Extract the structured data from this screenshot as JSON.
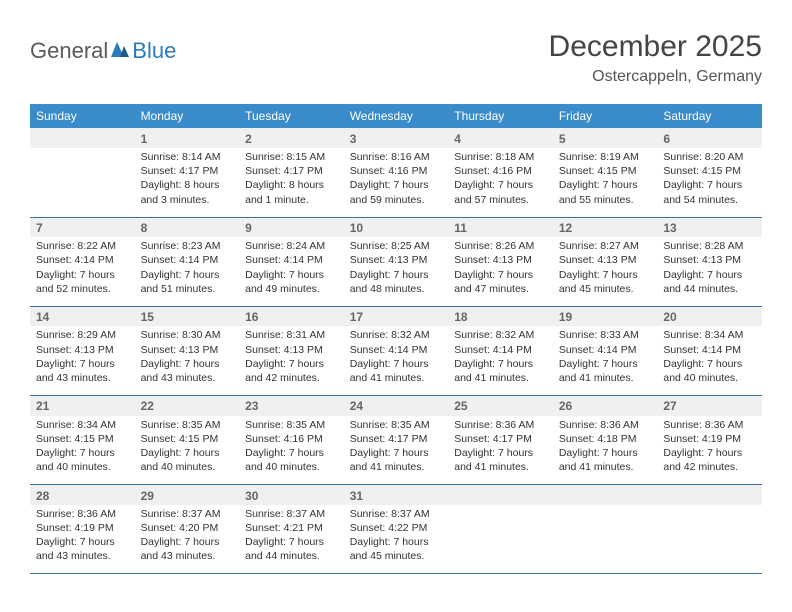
{
  "logo": {
    "general": "General",
    "blue": "Blue"
  },
  "title": "December 2025",
  "location": "Ostercappeln, Germany",
  "colors": {
    "header_bg": "#3a8bc9",
    "header_text": "#ffffff",
    "daynum_bg": "#eef0f2",
    "daynum_text": "#666666",
    "cell_text": "#333333",
    "rule": "#3a72a0",
    "logo_general": "#5a5a5a",
    "logo_blue": "#2a7bbf"
  },
  "dow": [
    "Sunday",
    "Monday",
    "Tuesday",
    "Wednesday",
    "Thursday",
    "Friday",
    "Saturday"
  ],
  "weeks": [
    [
      null,
      {
        "n": "1",
        "sr": "8:14 AM",
        "ss": "4:17 PM",
        "dl": "8 hours and 3 minutes."
      },
      {
        "n": "2",
        "sr": "8:15 AM",
        "ss": "4:17 PM",
        "dl": "8 hours and 1 minute."
      },
      {
        "n": "3",
        "sr": "8:16 AM",
        "ss": "4:16 PM",
        "dl": "7 hours and 59 minutes."
      },
      {
        "n": "4",
        "sr": "8:18 AM",
        "ss": "4:16 PM",
        "dl": "7 hours and 57 minutes."
      },
      {
        "n": "5",
        "sr": "8:19 AM",
        "ss": "4:15 PM",
        "dl": "7 hours and 55 minutes."
      },
      {
        "n": "6",
        "sr": "8:20 AM",
        "ss": "4:15 PM",
        "dl": "7 hours and 54 minutes."
      }
    ],
    [
      {
        "n": "7",
        "sr": "8:22 AM",
        "ss": "4:14 PM",
        "dl": "7 hours and 52 minutes."
      },
      {
        "n": "8",
        "sr": "8:23 AM",
        "ss": "4:14 PM",
        "dl": "7 hours and 51 minutes."
      },
      {
        "n": "9",
        "sr": "8:24 AM",
        "ss": "4:14 PM",
        "dl": "7 hours and 49 minutes."
      },
      {
        "n": "10",
        "sr": "8:25 AM",
        "ss": "4:13 PM",
        "dl": "7 hours and 48 minutes."
      },
      {
        "n": "11",
        "sr": "8:26 AM",
        "ss": "4:13 PM",
        "dl": "7 hours and 47 minutes."
      },
      {
        "n": "12",
        "sr": "8:27 AM",
        "ss": "4:13 PM",
        "dl": "7 hours and 45 minutes."
      },
      {
        "n": "13",
        "sr": "8:28 AM",
        "ss": "4:13 PM",
        "dl": "7 hours and 44 minutes."
      }
    ],
    [
      {
        "n": "14",
        "sr": "8:29 AM",
        "ss": "4:13 PM",
        "dl": "7 hours and 43 minutes."
      },
      {
        "n": "15",
        "sr": "8:30 AM",
        "ss": "4:13 PM",
        "dl": "7 hours and 43 minutes."
      },
      {
        "n": "16",
        "sr": "8:31 AM",
        "ss": "4:13 PM",
        "dl": "7 hours and 42 minutes."
      },
      {
        "n": "17",
        "sr": "8:32 AM",
        "ss": "4:14 PM",
        "dl": "7 hours and 41 minutes."
      },
      {
        "n": "18",
        "sr": "8:32 AM",
        "ss": "4:14 PM",
        "dl": "7 hours and 41 minutes."
      },
      {
        "n": "19",
        "sr": "8:33 AM",
        "ss": "4:14 PM",
        "dl": "7 hours and 41 minutes."
      },
      {
        "n": "20",
        "sr": "8:34 AM",
        "ss": "4:14 PM",
        "dl": "7 hours and 40 minutes."
      }
    ],
    [
      {
        "n": "21",
        "sr": "8:34 AM",
        "ss": "4:15 PM",
        "dl": "7 hours and 40 minutes."
      },
      {
        "n": "22",
        "sr": "8:35 AM",
        "ss": "4:15 PM",
        "dl": "7 hours and 40 minutes."
      },
      {
        "n": "23",
        "sr": "8:35 AM",
        "ss": "4:16 PM",
        "dl": "7 hours and 40 minutes."
      },
      {
        "n": "24",
        "sr": "8:35 AM",
        "ss": "4:17 PM",
        "dl": "7 hours and 41 minutes."
      },
      {
        "n": "25",
        "sr": "8:36 AM",
        "ss": "4:17 PM",
        "dl": "7 hours and 41 minutes."
      },
      {
        "n": "26",
        "sr": "8:36 AM",
        "ss": "4:18 PM",
        "dl": "7 hours and 41 minutes."
      },
      {
        "n": "27",
        "sr": "8:36 AM",
        "ss": "4:19 PM",
        "dl": "7 hours and 42 minutes."
      }
    ],
    [
      {
        "n": "28",
        "sr": "8:36 AM",
        "ss": "4:19 PM",
        "dl": "7 hours and 43 minutes."
      },
      {
        "n": "29",
        "sr": "8:37 AM",
        "ss": "4:20 PM",
        "dl": "7 hours and 43 minutes."
      },
      {
        "n": "30",
        "sr": "8:37 AM",
        "ss": "4:21 PM",
        "dl": "7 hours and 44 minutes."
      },
      {
        "n": "31",
        "sr": "8:37 AM",
        "ss": "4:22 PM",
        "dl": "7 hours and 45 minutes."
      },
      null,
      null,
      null
    ]
  ],
  "labels": {
    "sunrise": "Sunrise:",
    "sunset": "Sunset:",
    "daylight": "Daylight:"
  }
}
